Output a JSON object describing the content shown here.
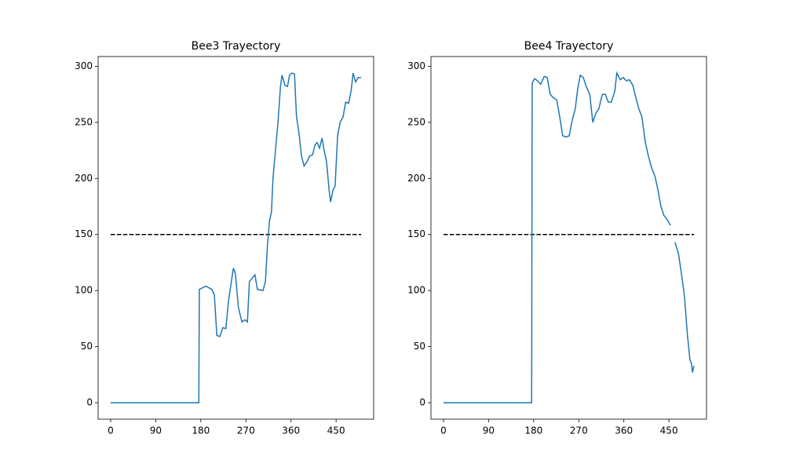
{
  "charts": [
    {
      "type": "line",
      "title": "Bee3 Trayectory",
      "xlim": [
        -25,
        525
      ],
      "ylim": [
        -14.7,
        308.7
      ],
      "xticks": [
        0,
        90,
        180,
        270,
        360,
        450
      ],
      "yticks": [
        0,
        50,
        100,
        150,
        200,
        250,
        300
      ],
      "reference_line": {
        "y": 150,
        "x": [
          0,
          500
        ],
        "color": "#000000",
        "style": "dashed"
      },
      "series": [
        {
          "color": "#1f77b4",
          "x": [
            0,
            176,
            177,
            190,
            202,
            207,
            212,
            218,
            224,
            230,
            235,
            245,
            249,
            255,
            262,
            268,
            273,
            277,
            288,
            293,
            304,
            309,
            313,
            317,
            321,
            324,
            329,
            334,
            339,
            342,
            348,
            353,
            357,
            362,
            367,
            371,
            376,
            381,
            386,
            392,
            397,
            403,
            408,
            412,
            417,
            422,
            426,
            431,
            436,
            439,
            444,
            448,
            453,
            458,
            464,
            469,
            475,
            480,
            484,
            489,
            494,
            500
          ],
          "values": [
            0,
            0,
            101,
            104,
            101,
            96,
            60,
            59,
            67,
            66,
            90,
            120,
            115,
            85,
            72,
            74,
            72,
            108,
            114,
            101,
            100,
            108,
            140,
            162,
            170,
            200,
            225,
            250,
            282,
            292,
            283,
            282,
            292,
            294,
            293,
            255,
            240,
            220,
            211,
            215,
            220,
            221,
            230,
            232,
            227,
            236,
            225,
            215,
            190,
            179,
            190,
            193,
            238,
            250,
            255,
            268,
            267,
            278,
            294,
            286,
            290,
            290
          ]
        }
      ]
    },
    {
      "type": "line",
      "title": "Bee4 Trayectory",
      "xlim": [
        -25,
        525
      ],
      "ylim": [
        -14.7,
        308.7
      ],
      "xticks": [
        0,
        90,
        180,
        270,
        360,
        450
      ],
      "yticks": [
        0,
        50,
        100,
        150,
        200,
        250,
        300
      ],
      "reference_line": {
        "y": 150,
        "x": [
          0,
          500
        ],
        "color": "#000000",
        "style": "dashed"
      },
      "series": [
        {
          "color": "#1f77b4",
          "x": [
            0,
            176,
            177,
            182,
            188,
            194,
            201,
            207,
            213,
            219,
            226,
            232,
            238,
            245,
            251,
            257,
            263,
            268,
            273,
            279,
            285,
            292,
            298,
            304,
            310,
            317,
            323,
            329,
            335,
            342,
            346,
            353,
            359,
            365,
            371,
            378,
            384,
            390,
            396,
            403,
            409,
            415,
            422,
            428,
            434,
            440,
            447,
            453,
            457,
            462,
            469,
            475,
            481,
            487,
            492,
            495,
            497,
            500
          ],
          "values": [
            0,
            0,
            285,
            289,
            287,
            284,
            291,
            290,
            275,
            272,
            270,
            255,
            238,
            237,
            238,
            252,
            262,
            280,
            292,
            290,
            282,
            275,
            250,
            258,
            262,
            275,
            275,
            268,
            268,
            278,
            294,
            288,
            290,
            287,
            288,
            283,
            272,
            262,
            255,
            232,
            220,
            210,
            202,
            190,
            175,
            167,
            163,
            158,
            null,
            143,
            133,
            115,
            95,
            60,
            38,
            35,
            27,
            33
          ]
        }
      ]
    }
  ]
}
